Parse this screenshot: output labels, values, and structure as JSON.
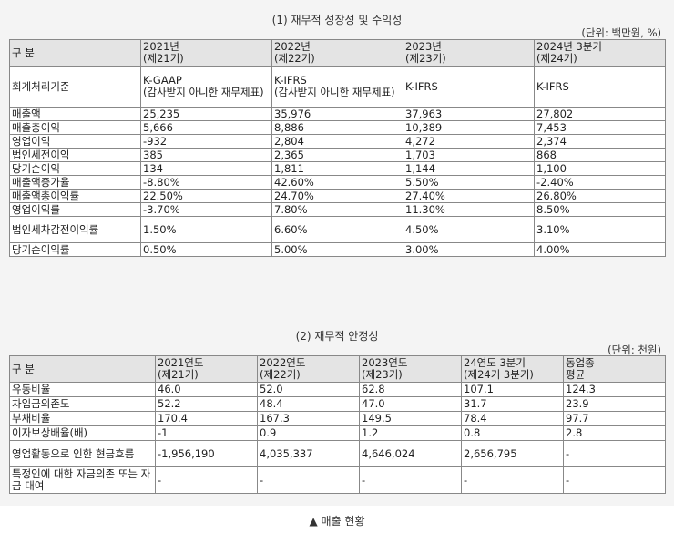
{
  "section1": {
    "title": "(1) 재무적 성장성 및 수익성",
    "unit": "(단위: 백만원, %)",
    "header_label": "구 분",
    "columns": [
      "2021년\n(제21기)",
      "2022년\n(제22기)",
      "2023년\n(제23기)",
      "2024년 3분기\n(제24기)"
    ],
    "rows": [
      {
        "label": "회계처리기준",
        "cells": [
          "K-GAAP\n(감사받지 아니한 재무제표)",
          "K-IFRS\n(감사받지 아니한 재무제표)",
          "K-IFRS",
          "K-IFRS"
        ]
      },
      {
        "label": "매출액",
        "cells": [
          "25,235",
          "35,976",
          "37,963",
          "27,802"
        ]
      },
      {
        "label": "매출총이익",
        "cells": [
          "5,666",
          "8,886",
          "10,389",
          "7,453"
        ]
      },
      {
        "label": "영업이익",
        "cells": [
          "-932",
          "2,804",
          "4,272",
          "2,374"
        ]
      },
      {
        "label": "법인세전이익",
        "cells": [
          "385",
          "2,365",
          "1,703",
          "868"
        ]
      },
      {
        "label": "당기순이익",
        "cells": [
          "134",
          "1,811",
          "1,144",
          "1,100"
        ]
      },
      {
        "label": "매출액증가율",
        "cells": [
          "-8.80%",
          "42.60%",
          "5.50%",
          "-2.40%"
        ]
      },
      {
        "label": "매출액총이익률",
        "cells": [
          "22.50%",
          "24.70%",
          "27.40%",
          "26.80%"
        ]
      },
      {
        "label": "영업이익률",
        "cells": [
          "-3.70%",
          "7.80%",
          "11.30%",
          "8.50%"
        ]
      },
      {
        "label": "법인세차감전이익률",
        "cells": [
          "1.50%",
          "6.60%",
          "4.50%",
          "3.10%"
        ]
      },
      {
        "label": "당기순이익률",
        "cells": [
          "0.50%",
          "5.00%",
          "3.00%",
          "4.00%"
        ]
      }
    ]
  },
  "section2": {
    "title": "(2) 재무적 안정성",
    "unit": "(단위: 천원)",
    "header_label": "구 분",
    "columns": [
      "2021연도\n(제21기)",
      "2022연도\n(제22기)",
      "2023연도\n(제23기)",
      "24연도 3분기\n(제24기 3분기)",
      "동업종\n평균"
    ],
    "rows": [
      {
        "label": "유동비율",
        "cells": [
          "46.0",
          "52.0",
          "62.8",
          "107.1",
          "124.3"
        ]
      },
      {
        "label": "차입금의존도",
        "cells": [
          "52.2",
          "48.4",
          "47.0",
          "31.7",
          "23.9"
        ]
      },
      {
        "label": "부채비율",
        "cells": [
          "170.4",
          "167.3",
          "149.5",
          "78.4",
          "97.7"
        ]
      },
      {
        "label": "이자보상배율(배)",
        "cells": [
          "-1",
          "0.9",
          "1.2",
          "0.8",
          "2.8"
        ]
      },
      {
        "label": "영업활동으로 인한 현금흐름",
        "cells": [
          "-1,956,190",
          "4,035,337",
          "4,646,024",
          "2,656,795",
          "-"
        ]
      },
      {
        "label": "특정인에 대한 자금의존 또는 자금 대여",
        "cells": [
          "-",
          "-",
          "-",
          "-",
          "-"
        ]
      }
    ]
  },
  "caption": "▲ 매출 현황"
}
